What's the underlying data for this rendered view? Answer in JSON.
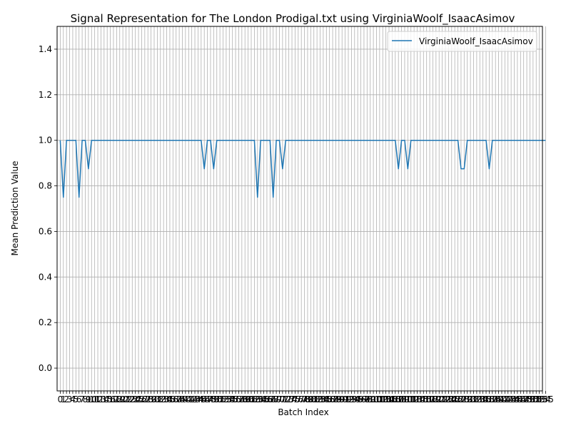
{
  "chart_data": {
    "type": "line",
    "title": "Signal Representation for The London Prodigal.txt using VirginiaWoolf_IsaacAsimov",
    "xlabel": "Batch Index",
    "ylabel": "Mean Prediction Value",
    "xlim": [
      -1,
      154
    ],
    "ylim": [
      -0.1,
      1.5
    ],
    "yticks": [
      "0.0",
      "0.2",
      "0.4",
      "0.6",
      "0.8",
      "1.0",
      "1.2",
      "1.4"
    ],
    "grid": true,
    "legend": "top-right",
    "series": [
      {
        "name": "VirginiaWoolf_IsaacAsimov",
        "color": "#1f77b4",
        "x_start": 0,
        "values": [
          1.0,
          0.75,
          1.0,
          1.0,
          1.0,
          1.0,
          0.75,
          1.0,
          1.0,
          0.875,
          1.0,
          1.0,
          1.0,
          1.0,
          1.0,
          1.0,
          1.0,
          1.0,
          1.0,
          1.0,
          1.0,
          1.0,
          1.0,
          1.0,
          1.0,
          1.0,
          1.0,
          1.0,
          1.0,
          1.0,
          1.0,
          1.0,
          1.0,
          1.0,
          1.0,
          1.0,
          1.0,
          1.0,
          1.0,
          1.0,
          1.0,
          1.0,
          1.0,
          1.0,
          1.0,
          1.0,
          0.875,
          1.0,
          1.0,
          0.875,
          1.0,
          1.0,
          1.0,
          1.0,
          1.0,
          1.0,
          1.0,
          1.0,
          1.0,
          1.0,
          1.0,
          1.0,
          1.0,
          0.75,
          1.0,
          1.0,
          1.0,
          1.0,
          0.75,
          1.0,
          1.0,
          0.875,
          1.0,
          1.0,
          1.0,
          1.0,
          1.0,
          1.0,
          1.0,
          1.0,
          1.0,
          1.0,
          1.0,
          1.0,
          1.0,
          1.0,
          1.0,
          1.0,
          1.0,
          1.0,
          1.0,
          1.0,
          1.0,
          1.0,
          1.0,
          1.0,
          1.0,
          1.0,
          1.0,
          1.0,
          1.0,
          1.0,
          1.0,
          1.0,
          1.0,
          1.0,
          1.0,
          1.0,
          0.875,
          1.0,
          1.0,
          0.875,
          1.0,
          1.0,
          1.0,
          1.0,
          1.0,
          1.0,
          1.0,
          1.0,
          1.0,
          1.0,
          1.0,
          1.0,
          1.0,
          1.0,
          1.0,
          1.0,
          0.875,
          0.875,
          1.0,
          1.0,
          1.0,
          1.0,
          1.0,
          1.0,
          1.0,
          0.875,
          1.0,
          1.0,
          1.0,
          1.0,
          1.0,
          1.0,
          1.0,
          1.0,
          1.0,
          1.0,
          1.0,
          1.0,
          1.0,
          1.0,
          1.0,
          1.0,
          1.0,
          1.0
        ]
      }
    ]
  }
}
